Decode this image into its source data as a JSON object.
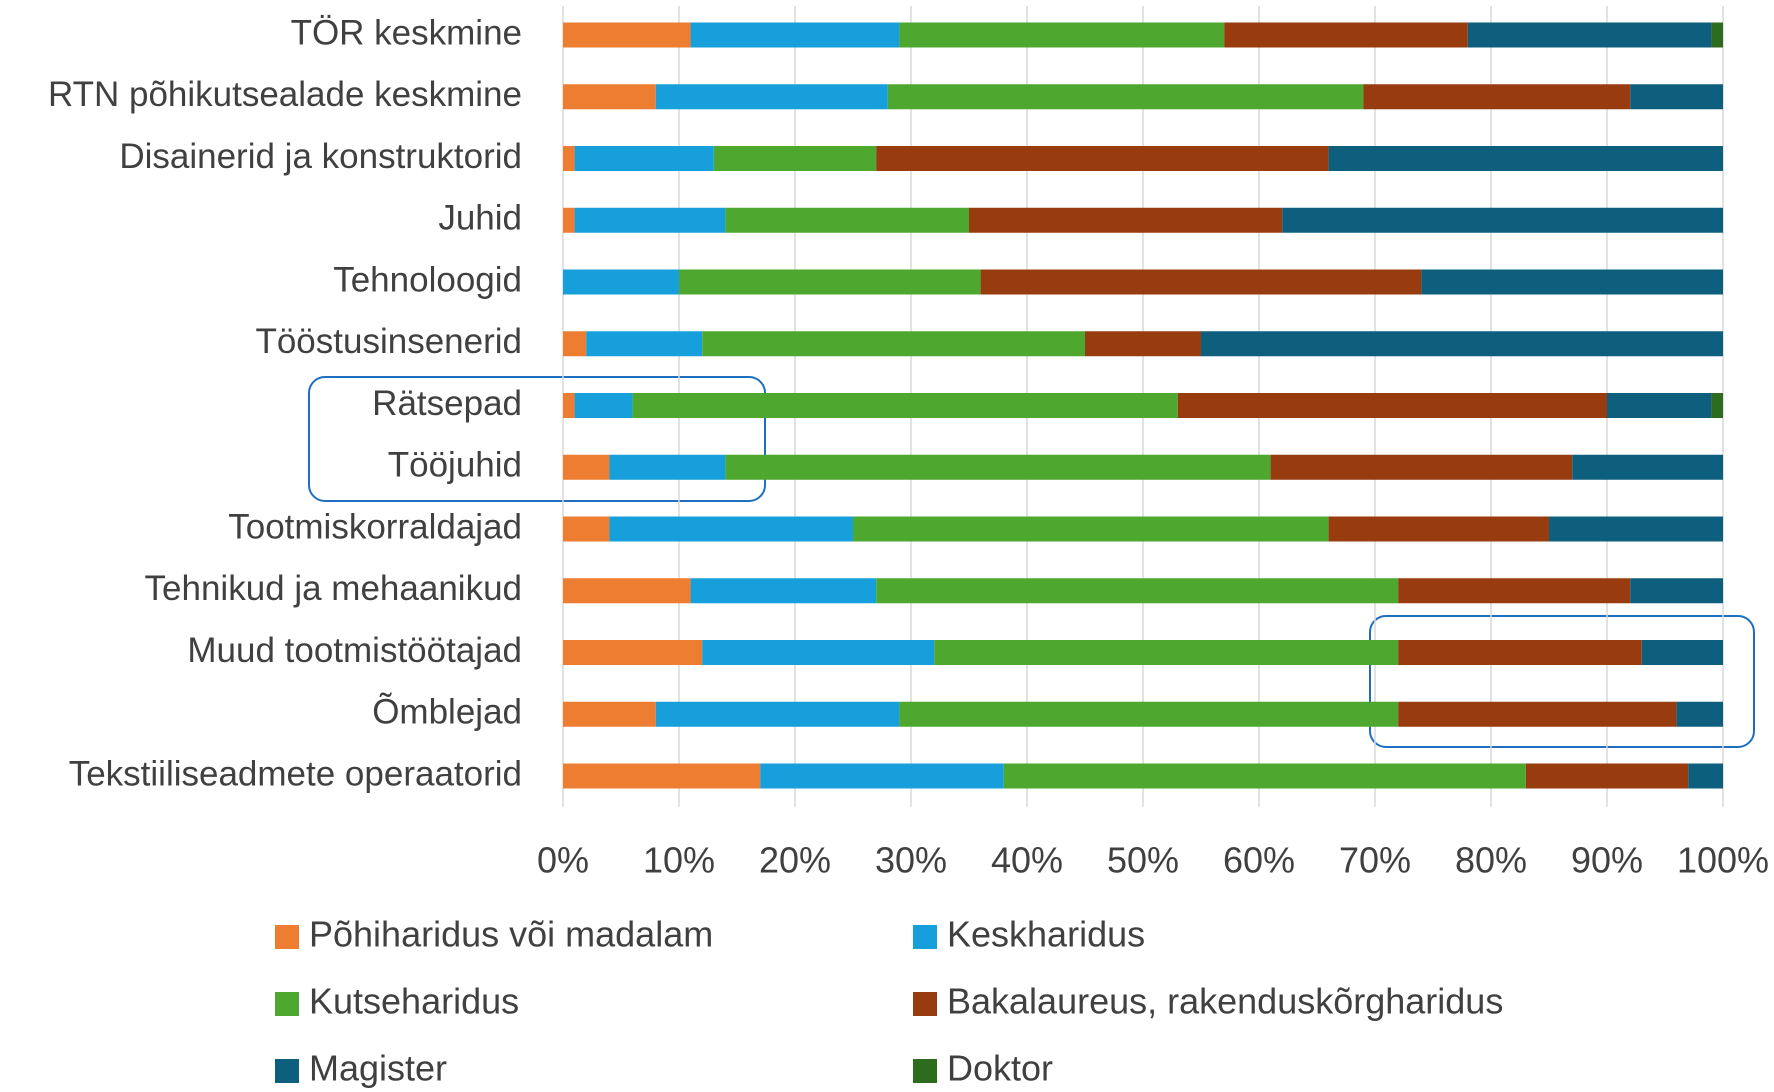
{
  "chart_data": {
    "type": "stacked-barh",
    "categories": [
      "TÖR keskmine",
      "RTN põhikutsealade keskmine",
      "Disainerid ja konstruktorid",
      "Juhid",
      "Tehnoloogid",
      "Tööstusinsenerid",
      "Rätsepad",
      "Tööjuhid",
      "Tootmiskorraldajad",
      "Tehnikud ja mehaanikud",
      "Muud tootmistöötajad",
      "Õmblejad",
      "Tekstiiliseadmete operaatorid"
    ],
    "series": [
      {
        "name": "Põhiharidus või madalam",
        "color": "#ed7d31",
        "values": [
          11,
          8,
          1,
          1,
          0,
          2,
          1,
          4,
          4,
          11,
          12,
          8,
          17
        ]
      },
      {
        "name": "Keskharidus",
        "color": "#169fda",
        "values": [
          18,
          20,
          12,
          13,
          10,
          10,
          5,
          10,
          21,
          16,
          20,
          21,
          21
        ]
      },
      {
        "name": "Kutseharidus",
        "color": "#4ea72e",
        "values": [
          28,
          41,
          14,
          21,
          26,
          33,
          47,
          47,
          41,
          45,
          40,
          43,
          45
        ]
      },
      {
        "name": "Bakalaureus, rakenduskõrgharidus",
        "color": "#983c10",
        "values": [
          21,
          23,
          39,
          27,
          38,
          10,
          37,
          26,
          19,
          20,
          21,
          24,
          14
        ]
      },
      {
        "name": "Magister",
        "color": "#0e5f7e",
        "values": [
          21,
          8,
          34,
          38,
          26,
          45,
          9,
          13,
          15,
          8,
          7,
          4,
          3
        ]
      },
      {
        "name": "Doktor",
        "color": "#2d6b1d",
        "values": [
          1,
          0,
          0,
          0,
          0,
          0,
          1,
          0,
          0,
          0,
          0,
          0,
          0
        ]
      }
    ],
    "xlim": [
      0,
      100
    ],
    "xticks": [
      {
        "value": 0,
        "label": "0%"
      },
      {
        "value": 10,
        "label": "10%"
      },
      {
        "value": 20,
        "label": "20%"
      },
      {
        "value": 30,
        "label": "30%"
      },
      {
        "value": 40,
        "label": "40%"
      },
      {
        "value": 50,
        "label": "50%"
      },
      {
        "value": 60,
        "label": "60%"
      },
      {
        "value": 70,
        "label": "70%"
      },
      {
        "value": 80,
        "label": "80%"
      },
      {
        "value": 90,
        "label": "90%"
      },
      {
        "value": 100,
        "label": "100%"
      }
    ],
    "grid": true,
    "legend": "bottom"
  }
}
